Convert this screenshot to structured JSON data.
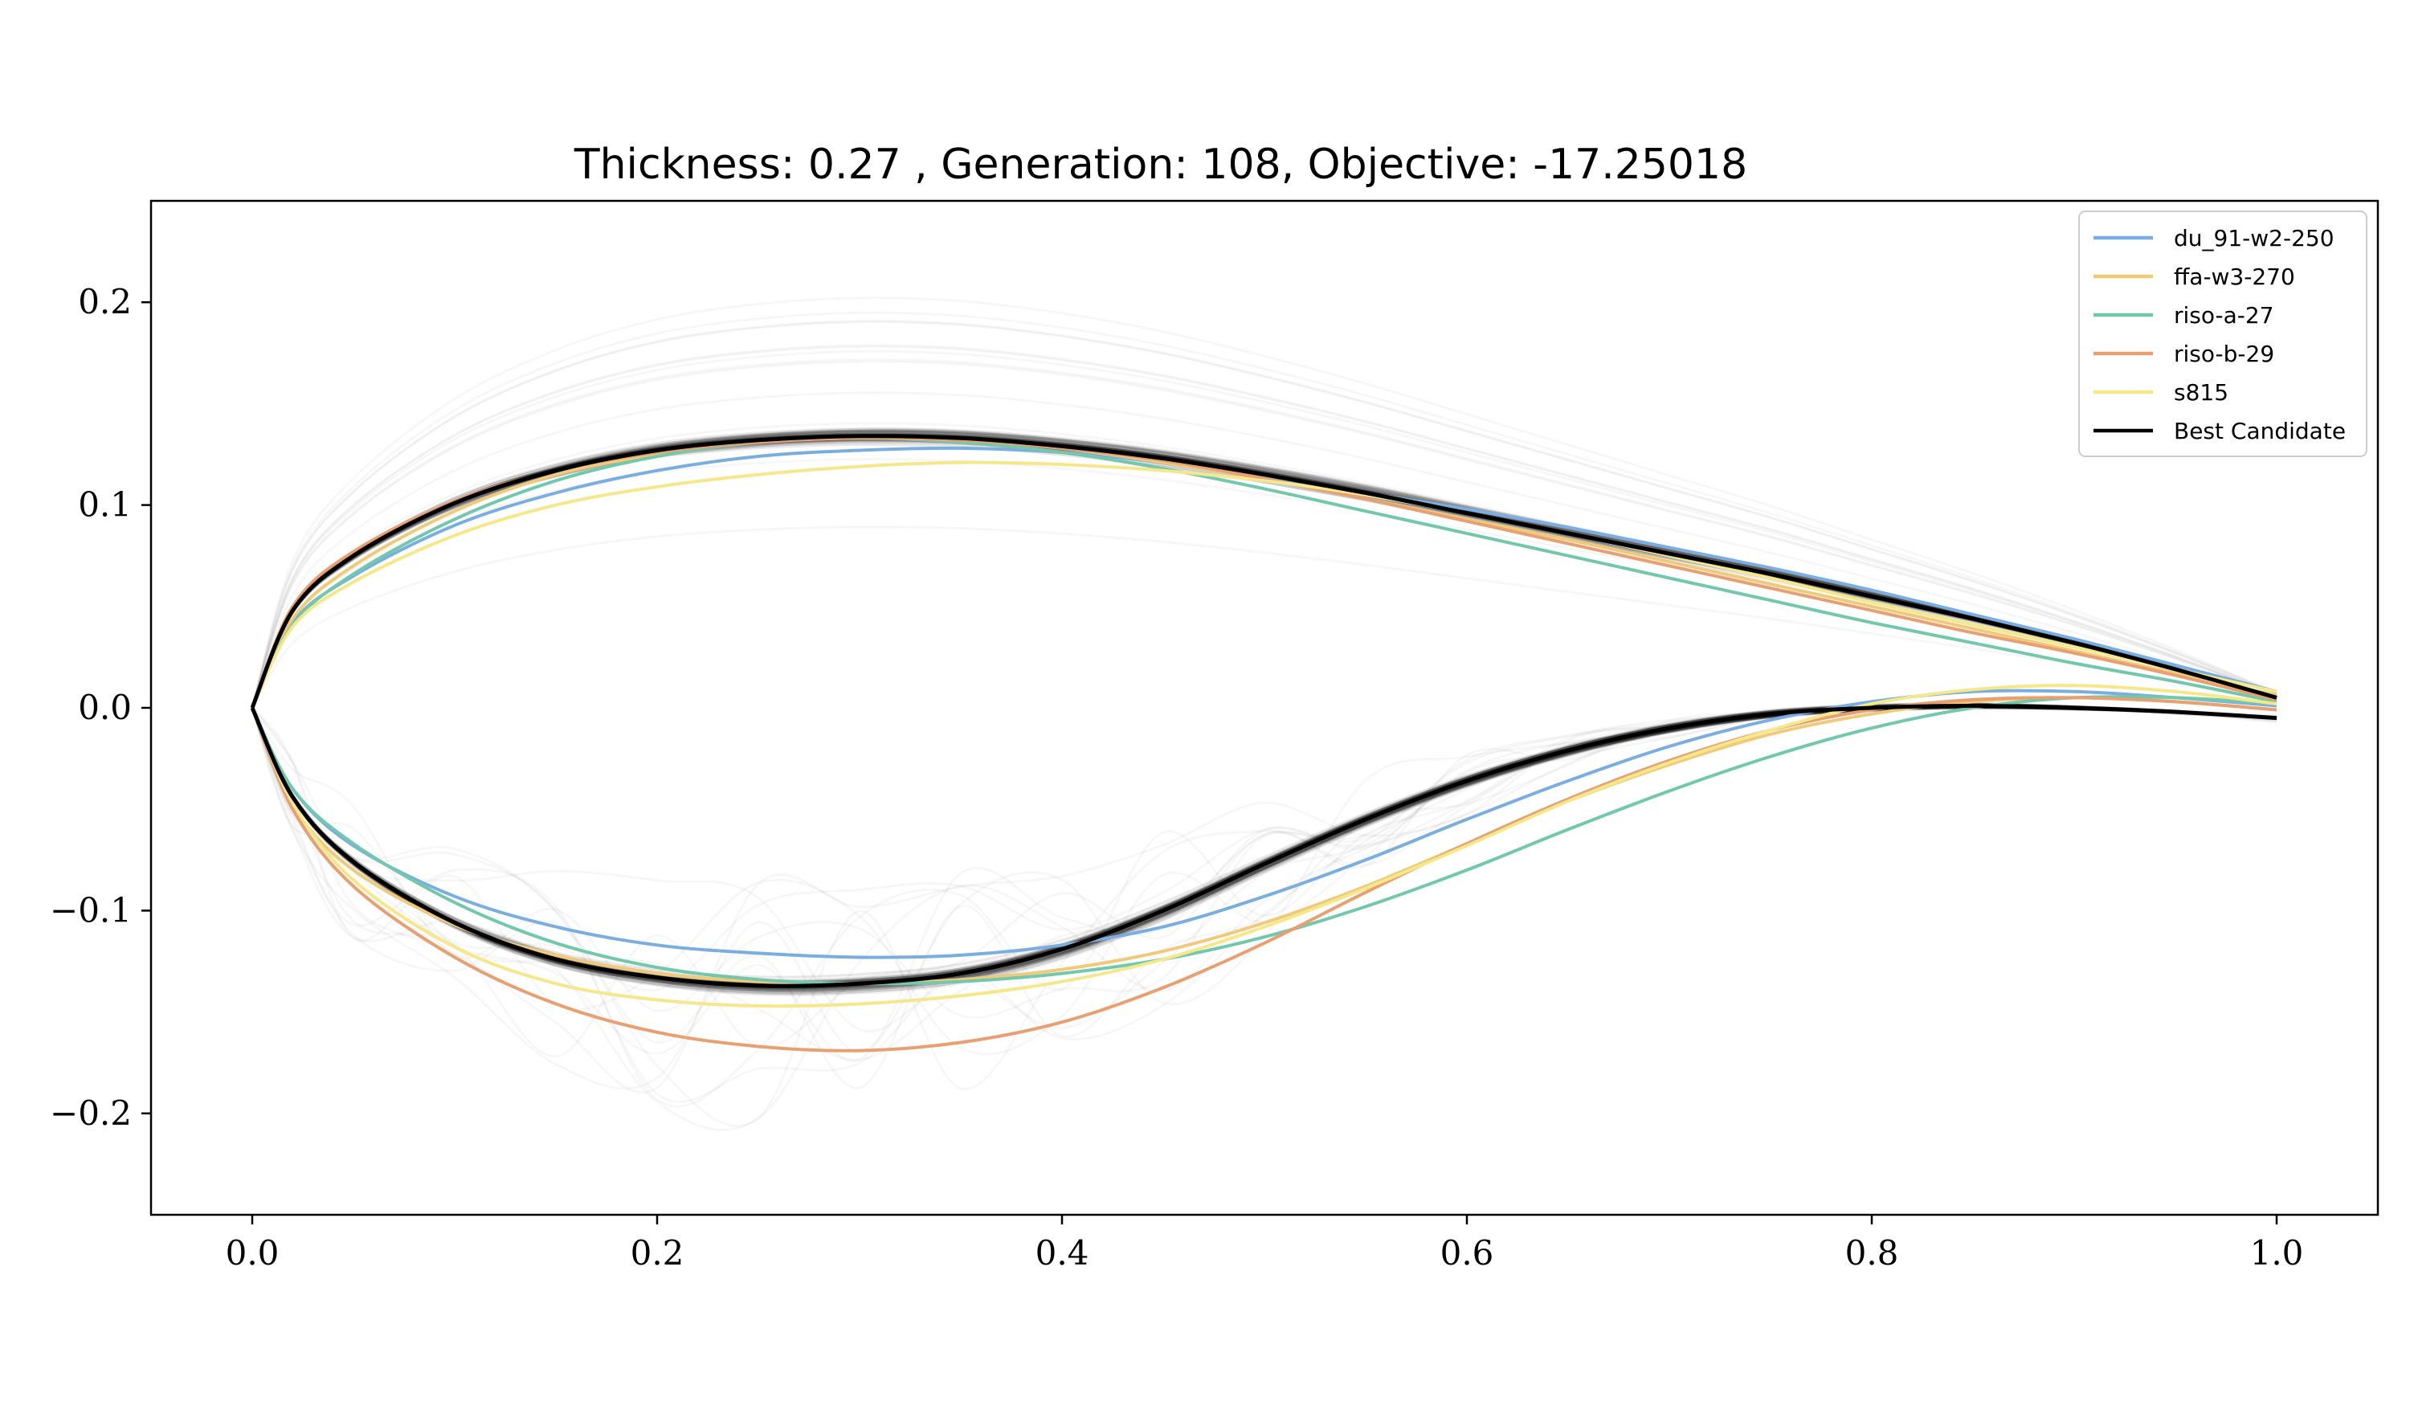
{
  "chart_data": {
    "type": "line",
    "title": "Thickness: 0.27 , Generation: 108, Objective: -17.25018",
    "xlabel": "",
    "ylabel": "",
    "xlim": [
      -0.05,
      1.05
    ],
    "ylim": [
      -0.25,
      0.25
    ],
    "x_ticks": [
      "0.0",
      "0.2",
      "0.4",
      "0.6",
      "0.8",
      "1.0"
    ],
    "x_tick_values": [
      0.0,
      0.2,
      0.4,
      0.6,
      0.8,
      1.0
    ],
    "y_ticks": [
      "−0.2",
      "−0.1",
      "0.0",
      "0.1",
      "0.2"
    ],
    "y_tick_values": [
      -0.2,
      -0.1,
      0.0,
      0.1,
      0.2
    ],
    "grid": false,
    "legend_position": "top-right",
    "x": [
      0.0,
      0.02,
      0.05,
      0.1,
      0.15,
      0.2,
      0.25,
      0.3,
      0.35,
      0.4,
      0.45,
      0.5,
      0.55,
      0.6,
      0.65,
      0.7,
      0.75,
      0.8,
      0.85,
      0.9,
      0.95,
      1.0
    ],
    "series": [
      {
        "name": "du_91-w2-250",
        "color": "#7aaee0",
        "upper": [
          0.0,
          0.042,
          0.065,
          0.09,
          0.106,
          0.117,
          0.124,
          0.127,
          0.128,
          0.126,
          0.121,
          0.114,
          0.106,
          0.098,
          0.089,
          0.079,
          0.069,
          0.058,
          0.046,
          0.034,
          0.021,
          0.008
        ],
        "lower": [
          0.0,
          -0.04,
          -0.068,
          -0.093,
          -0.108,
          -0.117,
          -0.121,
          -0.123,
          -0.122,
          -0.117,
          -0.108,
          -0.093,
          -0.075,
          -0.055,
          -0.036,
          -0.019,
          -0.006,
          0.003,
          0.008,
          0.008,
          0.005,
          0.001
        ]
      },
      {
        "name": "ffa-w3-270",
        "color": "#f0ca78",
        "upper": [
          0.0,
          0.044,
          0.07,
          0.097,
          0.115,
          0.125,
          0.131,
          0.133,
          0.132,
          0.128,
          0.121,
          0.113,
          0.103,
          0.093,
          0.083,
          0.072,
          0.061,
          0.05,
          0.039,
          0.028,
          0.017,
          0.006
        ],
        "lower": [
          0.0,
          -0.048,
          -0.08,
          -0.107,
          -0.122,
          -0.131,
          -0.135,
          -0.136,
          -0.134,
          -0.129,
          -0.12,
          -0.106,
          -0.088,
          -0.067,
          -0.046,
          -0.028,
          -0.013,
          -0.003,
          0.003,
          0.005,
          0.003,
          -0.001
        ]
      },
      {
        "name": "riso-a-27",
        "color": "#72c8ac",
        "upper": [
          0.0,
          0.041,
          0.066,
          0.093,
          0.112,
          0.124,
          0.131,
          0.133,
          0.131,
          0.126,
          0.118,
          0.108,
          0.097,
          0.086,
          0.075,
          0.064,
          0.053,
          0.042,
          0.032,
          0.022,
          0.013,
          0.003
        ],
        "lower": [
          0.0,
          -0.04,
          -0.067,
          -0.096,
          -0.116,
          -0.128,
          -0.134,
          -0.136,
          -0.135,
          -0.131,
          -0.124,
          -0.113,
          -0.098,
          -0.08,
          -0.06,
          -0.041,
          -0.024,
          -0.01,
          0.0,
          0.005,
          0.005,
          0.002
        ]
      },
      {
        "name": "riso-b-29",
        "color": "#e8a070",
        "upper": [
          0.0,
          0.05,
          0.077,
          0.102,
          0.117,
          0.126,
          0.131,
          0.133,
          0.132,
          0.128,
          0.122,
          0.113,
          0.103,
          0.092,
          0.081,
          0.07,
          0.059,
          0.048,
          0.037,
          0.027,
          0.016,
          0.004
        ],
        "lower": [
          0.0,
          -0.05,
          -0.088,
          -0.123,
          -0.146,
          -0.16,
          -0.167,
          -0.169,
          -0.165,
          -0.155,
          -0.138,
          -0.116,
          -0.091,
          -0.067,
          -0.045,
          -0.026,
          -0.011,
          -0.001,
          0.004,
          0.005,
          0.003,
          -0.001
        ]
      },
      {
        "name": "s815",
        "color": "#f5e88a",
        "upper": [
          0.0,
          0.04,
          0.062,
          0.085,
          0.1,
          0.109,
          0.115,
          0.119,
          0.121,
          0.12,
          0.117,
          0.112,
          0.105,
          0.096,
          0.086,
          0.075,
          0.064,
          0.052,
          0.041,
          0.03,
          0.019,
          0.008
        ],
        "lower": [
          0.0,
          -0.047,
          -0.085,
          -0.118,
          -0.136,
          -0.144,
          -0.147,
          -0.146,
          -0.142,
          -0.135,
          -0.124,
          -0.108,
          -0.089,
          -0.068,
          -0.046,
          -0.027,
          -0.011,
          0.002,
          0.009,
          0.011,
          0.008,
          0.002
        ]
      },
      {
        "name": "Best Candidate",
        "color": "#000000",
        "upper": [
          0.0,
          0.048,
          0.075,
          0.101,
          0.117,
          0.127,
          0.132,
          0.134,
          0.133,
          0.129,
          0.123,
          0.115,
          0.106,
          0.096,
          0.086,
          0.076,
          0.066,
          0.055,
          0.044,
          0.032,
          0.019,
          0.005
        ],
        "lower": [
          0.0,
          -0.044,
          -0.076,
          -0.106,
          -0.124,
          -0.133,
          -0.137,
          -0.136,
          -0.131,
          -0.119,
          -0.1,
          -0.077,
          -0.055,
          -0.036,
          -0.021,
          -0.01,
          -0.003,
          0.0,
          0.001,
          0.0,
          -0.002,
          -0.005
        ]
      }
    ]
  }
}
